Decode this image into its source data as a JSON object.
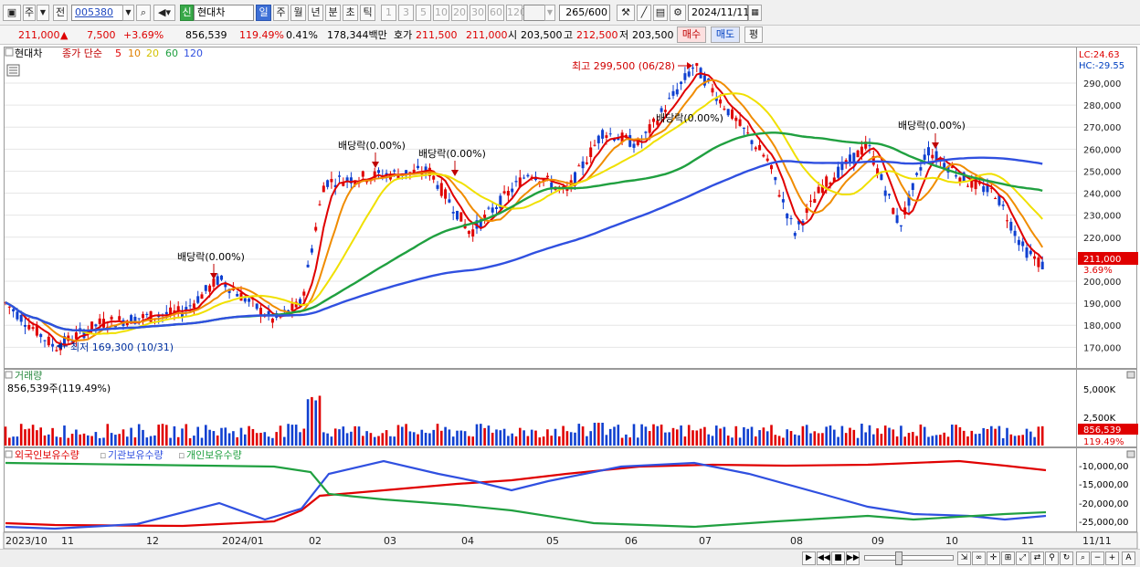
{
  "toolbar": {
    "buttons": [
      "주",
      "전"
    ],
    "code": "005380",
    "badge": "신",
    "name": "현대차",
    "periods": [
      "일",
      "주",
      "월",
      "년",
      "분",
      "초",
      "틱"
    ],
    "active_period": "일",
    "intervals": [
      "1",
      "3",
      "5",
      "10",
      "20",
      "30",
      "60",
      "120"
    ],
    "count": "265",
    "count_total": "/600",
    "date": "2024/11/11"
  },
  "quote": {
    "price": "211,000",
    "arrow": "▲",
    "change": "7,500",
    "change_pct": "+3.69%",
    "volume": "856,539",
    "vol_ratio": "119.49%",
    "turnover": "0.41%",
    "amount": "178,344백만",
    "bid_label": "호가",
    "bid": "211,500",
    "ask": "211,000",
    "open_label": "시",
    "open": "203,500",
    "high_label": "고",
    "high": "212,500",
    "low_label": "저",
    "low": "203,500",
    "buy_label": "매수",
    "sell_label": "매도",
    "avg_label": "평"
  },
  "price_panel": {
    "name": "현대차",
    "legend_title": "종가 단순",
    "ma_periods": [
      "5",
      "10",
      "20",
      "60",
      "120"
    ],
    "ma_colors": [
      "#e00000",
      "#f08c00",
      "#f0e000",
      "#20a040",
      "#3050e0"
    ],
    "lc": "LC:24.63",
    "hc": "HC:-29.55",
    "current_price": "211,000",
    "current_pct": "3.69%",
    "y_ticks": [
      "290,000",
      "280,000",
      "270,000",
      "260,000",
      "250,000",
      "240,000",
      "230,000",
      "220,000",
      "210,000",
      "200,000",
      "190,000",
      "180,000",
      "170,000"
    ],
    "annotations": [
      {
        "text": "최고 299,500 (06/28)",
        "color": "#d00000"
      },
      {
        "text": "최저 169,300 (10/31)",
        "color": "#0030a0"
      },
      {
        "text": "배당락(0.00%)",
        "color": "#000"
      },
      {
        "text": "배당락(0.00%)",
        "color": "#000"
      },
      {
        "text": "배당락(0.00%)",
        "color": "#000"
      },
      {
        "text": "배당락(0.00%)",
        "color": "#000"
      },
      {
        "text": "배당락(0.00%)",
        "color": "#000"
      }
    ]
  },
  "volume_panel": {
    "title": "거래량",
    "value": "856,539주(119.49%)",
    "y_ticks": [
      "5,000K",
      "2,500K"
    ],
    "current": "856,539",
    "current_pct": "119.49%"
  },
  "holders_panel": {
    "series": [
      {
        "name": "외국인보유수량",
        "color": "#e00000"
      },
      {
        "name": "기관보유수량",
        "color": "#3050e0"
      },
      {
        "name": "개인보유수량",
        "color": "#20a040"
      }
    ],
    "y_ticks": [
      "-10,000,00",
      "-15,000,00",
      "-20,000,00",
      "-25,000,00"
    ]
  },
  "x_axis": {
    "labels": [
      "2023/10",
      "11",
      "12",
      "2024/01",
      "02",
      "03",
      "04",
      "05",
      "06",
      "07",
      "08",
      "09",
      "10",
      "11"
    ],
    "right_label": "11/11"
  },
  "chart_data": {
    "type": "candlestick",
    "period": "daily",
    "y_range": [
      163000,
      302000
    ],
    "high": {
      "value": 299500,
      "date": "06/28"
    },
    "low": {
      "value": 169300,
      "date": "10/31"
    },
    "ma_periods": [
      5,
      10,
      20,
      60,
      120
    ],
    "last": {
      "close": 211000,
      "open": 203500,
      "high": 212500,
      "low": 203500,
      "volume": 856539
    }
  }
}
